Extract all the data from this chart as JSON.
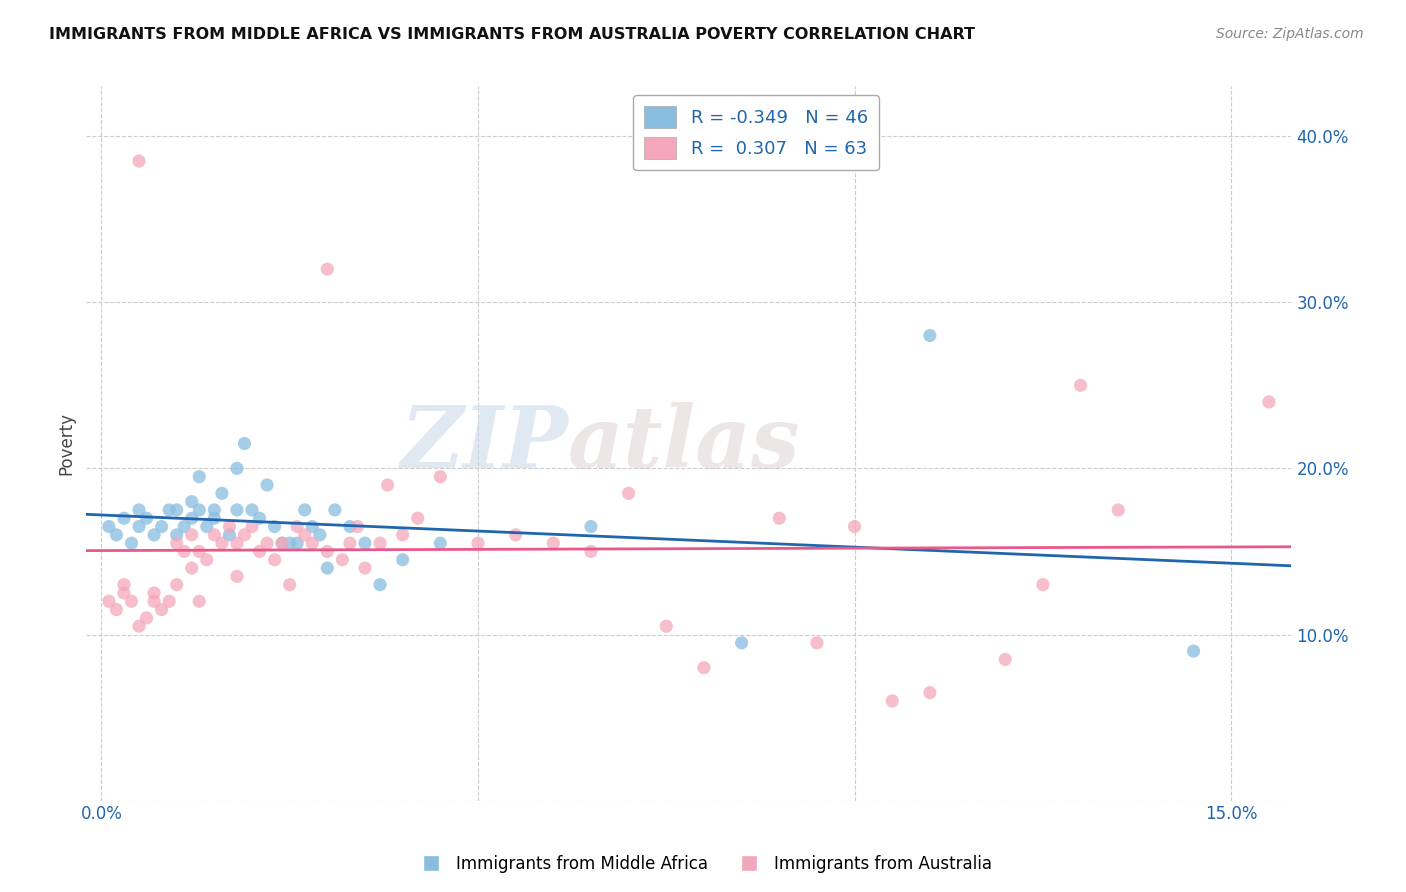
{
  "title": "IMMIGRANTS FROM MIDDLE AFRICA VS IMMIGRANTS FROM AUSTRALIA POVERTY CORRELATION CHART",
  "source": "Source: ZipAtlas.com",
  "ylabel": "Poverty",
  "y_ticks": [
    0.0,
    0.1,
    0.2,
    0.3,
    0.4
  ],
  "y_tick_labels": [
    "",
    "10.0%",
    "20.0%",
    "30.0%",
    "40.0%"
  ],
  "x_ticks": [
    0.0,
    0.05,
    0.1,
    0.15
  ],
  "x_tick_labels": [
    "0.0%",
    "",
    "",
    "15.0%"
  ],
  "xlim": [
    -0.002,
    0.158
  ],
  "ylim": [
    0.0,
    0.43
  ],
  "color_blue": "#89bde0",
  "color_pink": "#f4a7ba",
  "color_blue_line": "#2166ac",
  "color_pink_line": "#e8588a",
  "watermark_zip": "ZIP",
  "watermark_atlas": "atlas",
  "legend_label1": "Immigrants from Middle Africa",
  "legend_label2": "Immigrants from Australia",
  "blue_scatter_x": [
    0.001,
    0.002,
    0.003,
    0.004,
    0.005,
    0.005,
    0.006,
    0.007,
    0.008,
    0.009,
    0.01,
    0.01,
    0.011,
    0.012,
    0.012,
    0.013,
    0.013,
    0.014,
    0.015,
    0.015,
    0.016,
    0.017,
    0.018,
    0.018,
    0.019,
    0.02,
    0.021,
    0.022,
    0.023,
    0.024,
    0.025,
    0.026,
    0.027,
    0.028,
    0.029,
    0.03,
    0.031,
    0.033,
    0.035,
    0.037,
    0.04,
    0.045,
    0.065,
    0.085,
    0.11,
    0.145
  ],
  "blue_scatter_y": [
    0.165,
    0.16,
    0.17,
    0.155,
    0.175,
    0.165,
    0.17,
    0.16,
    0.165,
    0.175,
    0.16,
    0.175,
    0.165,
    0.18,
    0.17,
    0.195,
    0.175,
    0.165,
    0.175,
    0.17,
    0.185,
    0.16,
    0.175,
    0.2,
    0.215,
    0.175,
    0.17,
    0.19,
    0.165,
    0.155,
    0.155,
    0.155,
    0.175,
    0.165,
    0.16,
    0.14,
    0.175,
    0.165,
    0.155,
    0.13,
    0.145,
    0.155,
    0.165,
    0.095,
    0.28,
    0.09
  ],
  "pink_scatter_x": [
    0.001,
    0.002,
    0.003,
    0.003,
    0.004,
    0.005,
    0.005,
    0.006,
    0.007,
    0.007,
    0.008,
    0.009,
    0.01,
    0.01,
    0.011,
    0.012,
    0.012,
    0.013,
    0.013,
    0.014,
    0.015,
    0.016,
    0.017,
    0.018,
    0.018,
    0.019,
    0.02,
    0.021,
    0.022,
    0.023,
    0.024,
    0.025,
    0.026,
    0.027,
    0.028,
    0.03,
    0.03,
    0.032,
    0.033,
    0.034,
    0.035,
    0.037,
    0.038,
    0.04,
    0.042,
    0.045,
    0.05,
    0.055,
    0.06,
    0.065,
    0.07,
    0.075,
    0.08,
    0.09,
    0.095,
    0.1,
    0.105,
    0.11,
    0.12,
    0.125,
    0.13,
    0.135,
    0.155
  ],
  "pink_scatter_y": [
    0.12,
    0.115,
    0.125,
    0.13,
    0.12,
    0.105,
    0.385,
    0.11,
    0.12,
    0.125,
    0.115,
    0.12,
    0.13,
    0.155,
    0.15,
    0.14,
    0.16,
    0.12,
    0.15,
    0.145,
    0.16,
    0.155,
    0.165,
    0.155,
    0.135,
    0.16,
    0.165,
    0.15,
    0.155,
    0.145,
    0.155,
    0.13,
    0.165,
    0.16,
    0.155,
    0.15,
    0.32,
    0.145,
    0.155,
    0.165,
    0.14,
    0.155,
    0.19,
    0.16,
    0.17,
    0.195,
    0.155,
    0.16,
    0.155,
    0.15,
    0.185,
    0.105,
    0.08,
    0.17,
    0.095,
    0.165,
    0.06,
    0.065,
    0.085,
    0.13,
    0.25,
    0.175,
    0.24
  ]
}
